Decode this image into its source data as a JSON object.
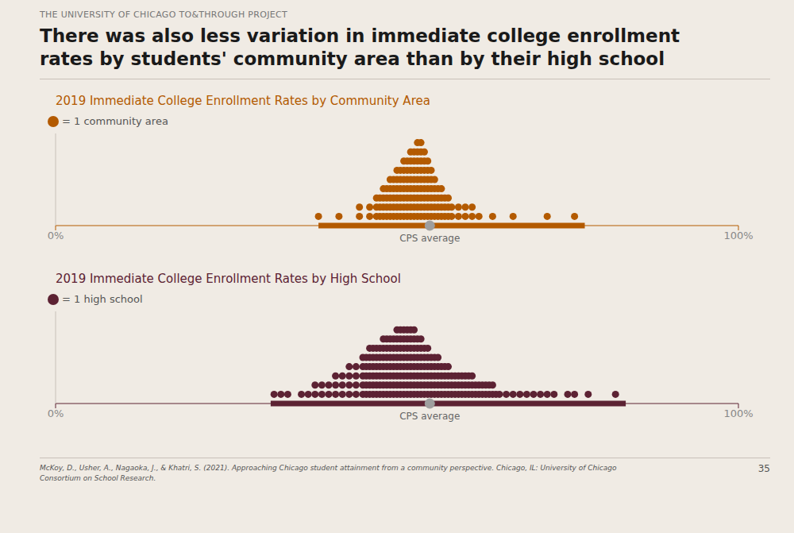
{
  "subtitle": "THE UNIVERSITY OF CHICAGO TO&THROUGH PROJECT",
  "title": "There was also less variation in immediate college enrollment\nrates by students' community area than by their high school",
  "annotations": [
    "McKoy, D., Usher, A., Nagaoka, J., & Khatri, S. (2021). Approaching Chicago student attainment from a community perspective. Chicago, IL: University of Chicago\nConsortium on School Research.",
    "35"
  ],
  "chart_data": [
    {
      "type": "scatter",
      "title": "2019 Immediate College Enrollment Rates by Community Area",
      "xlim": [
        0,
        1
      ],
      "xticks": [
        {
          "value": 0,
          "label": "0%"
        },
        {
          "value": 1,
          "label": "100%"
        }
      ],
      "ylim": [
        0,
        10
      ],
      "tick_labels": "x",
      "grid": false,
      "bar_range": [
        0.385,
        0.775
      ],
      "annotations": [
        {
          "text": "CPS average",
          "x": 0.548,
          "color": "#9e9e9e"
        }
      ],
      "series": [
        {
          "name": "= 1 community area",
          "color": "#b35a00",
          "x": [
            0.385,
            0.415,
            0.445,
            0.445,
            0.46,
            0.46,
            0.47,
            0.47,
            0.47,
            0.475,
            0.475,
            0.475,
            0.48,
            0.48,
            0.48,
            0.48,
            0.485,
            0.485,
            0.485,
            0.485,
            0.49,
            0.49,
            0.49,
            0.49,
            0.49,
            0.495,
            0.495,
            0.495,
            0.495,
            0.495,
            0.5,
            0.5,
            0.5,
            0.5,
            0.5,
            0.5,
            0.505,
            0.505,
            0.505,
            0.505,
            0.505,
            0.505,
            0.51,
            0.51,
            0.51,
            0.51,
            0.51,
            0.51,
            0.51,
            0.515,
            0.515,
            0.515,
            0.515,
            0.515,
            0.515,
            0.515,
            0.52,
            0.52,
            0.52,
            0.52,
            0.52,
            0.52,
            0.52,
            0.52,
            0.525,
            0.525,
            0.525,
            0.525,
            0.525,
            0.525,
            0.525,
            0.525,
            0.53,
            0.53,
            0.53,
            0.53,
            0.53,
            0.53,
            0.53,
            0.53,
            0.53,
            0.535,
            0.535,
            0.535,
            0.535,
            0.535,
            0.535,
            0.535,
            0.535,
            0.535,
            0.54,
            0.54,
            0.54,
            0.54,
            0.54,
            0.54,
            0.54,
            0.54,
            0.545,
            0.545,
            0.545,
            0.545,
            0.545,
            0.545,
            0.545,
            0.55,
            0.55,
            0.55,
            0.55,
            0.55,
            0.55,
            0.555,
            0.555,
            0.555,
            0.555,
            0.555,
            0.56,
            0.56,
            0.56,
            0.56,
            0.565,
            0.565,
            0.565,
            0.565,
            0.57,
            0.57,
            0.57,
            0.575,
            0.575,
            0.575,
            0.58,
            0.58,
            0.59,
            0.59,
            0.6,
            0.6,
            0.61,
            0.61,
            0.62,
            0.64,
            0.67,
            0.72,
            0.76
          ],
          "values": [
            1,
            1,
            1,
            2,
            1,
            2,
            1,
            2,
            3,
            1,
            2,
            3,
            1,
            2,
            3,
            4,
            1,
            2,
            3,
            4,
            1,
            2,
            3,
            4,
            5,
            1,
            2,
            3,
            4,
            5,
            1,
            2,
            3,
            4,
            5,
            6,
            1,
            2,
            3,
            4,
            5,
            6,
            1,
            2,
            3,
            4,
            5,
            6,
            7,
            1,
            2,
            3,
            4,
            5,
            6,
            7,
            1,
            2,
            3,
            4,
            5,
            6,
            7,
            8,
            1,
            2,
            3,
            4,
            5,
            6,
            7,
            8,
            1,
            2,
            3,
            4,
            5,
            6,
            7,
            8,
            9,
            1,
            2,
            3,
            4,
            5,
            6,
            7,
            8,
            9,
            1,
            2,
            3,
            4,
            5,
            6,
            7,
            8,
            1,
            2,
            3,
            4,
            5,
            6,
            7,
            1,
            2,
            3,
            4,
            5,
            6,
            1,
            2,
            3,
            4,
            5,
            1,
            2,
            3,
            4,
            1,
            2,
            3,
            4,
            1,
            2,
            3,
            1,
            2,
            3,
            1,
            2,
            1,
            2,
            1,
            2,
            1,
            2,
            1,
            1,
            1,
            1,
            1
          ]
        }
      ]
    },
    {
      "type": "scatter",
      "title": "2019 Immediate College Enrollment Rates by High School",
      "xlim": [
        0,
        1
      ],
      "xticks": [
        {
          "value": 0,
          "label": "0%"
        },
        {
          "value": 1,
          "label": "100%"
        }
      ],
      "ylim": [
        0,
        10
      ],
      "tick_labels": "x",
      "grid": false,
      "bar_range": [
        0.315,
        0.835
      ],
      "annotations": [
        {
          "text": "CPS average",
          "x": 0.548,
          "color": "#9e9e9e"
        }
      ],
      "series": [
        {
          "name": "= 1 high school",
          "color": "#5c2233",
          "x": [
            0.32,
            0.33,
            0.34,
            0.36,
            0.37,
            0.38,
            0.38,
            0.39,
            0.39,
            0.4,
            0.4,
            0.41,
            0.41,
            0.41,
            0.42,
            0.42,
            0.42,
            0.43,
            0.43,
            0.43,
            0.43,
            0.44,
            0.44,
            0.44,
            0.44,
            0.45,
            0.45,
            0.45,
            0.45,
            0.45,
            0.455,
            0.455,
            0.455,
            0.455,
            0.455,
            0.46,
            0.46,
            0.46,
            0.46,
            0.46,
            0.46,
            0.465,
            0.465,
            0.465,
            0.465,
            0.465,
            0.465,
            0.47,
            0.47,
            0.47,
            0.47,
            0.47,
            0.47,
            0.475,
            0.475,
            0.475,
            0.475,
            0.475,
            0.475,
            0.48,
            0.48,
            0.48,
            0.48,
            0.48,
            0.48,
            0.48,
            0.485,
            0.485,
            0.485,
            0.485,
            0.485,
            0.485,
            0.485,
            0.49,
            0.49,
            0.49,
            0.49,
            0.49,
            0.49,
            0.49,
            0.495,
            0.495,
            0.495,
            0.495,
            0.495,
            0.495,
            0.495,
            0.5,
            0.5,
            0.5,
            0.5,
            0.5,
            0.5,
            0.5,
            0.5,
            0.505,
            0.505,
            0.505,
            0.505,
            0.505,
            0.505,
            0.505,
            0.505,
            0.51,
            0.51,
            0.51,
            0.51,
            0.51,
            0.51,
            0.51,
            0.51,
            0.515,
            0.515,
            0.515,
            0.515,
            0.515,
            0.515,
            0.515,
            0.515,
            0.52,
            0.52,
            0.52,
            0.52,
            0.52,
            0.52,
            0.52,
            0.52,
            0.525,
            0.525,
            0.525,
            0.525,
            0.525,
            0.525,
            0.525,
            0.525,
            0.53,
            0.53,
            0.53,
            0.53,
            0.53,
            0.53,
            0.53,
            0.535,
            0.535,
            0.535,
            0.535,
            0.535,
            0.535,
            0.535,
            0.54,
            0.54,
            0.54,
            0.54,
            0.54,
            0.54,
            0.545,
            0.545,
            0.545,
            0.545,
            0.545,
            0.545,
            0.55,
            0.55,
            0.55,
            0.55,
            0.55,
            0.555,
            0.555,
            0.555,
            0.555,
            0.555,
            0.56,
            0.56,
            0.56,
            0.56,
            0.56,
            0.565,
            0.565,
            0.565,
            0.565,
            0.57,
            0.57,
            0.57,
            0.57,
            0.575,
            0.575,
            0.575,
            0.575,
            0.58,
            0.58,
            0.58,
            0.585,
            0.585,
            0.585,
            0.59,
            0.59,
            0.59,
            0.595,
            0.595,
            0.595,
            0.6,
            0.6,
            0.6,
            0.605,
            0.605,
            0.605,
            0.61,
            0.61,
            0.61,
            0.615,
            0.615,
            0.62,
            0.62,
            0.625,
            0.625,
            0.63,
            0.63,
            0.635,
            0.635,
            0.64,
            0.64,
            0.645,
            0.65,
            0.66,
            0.67,
            0.68,
            0.69,
            0.7,
            0.71,
            0.72,
            0.73,
            0.75,
            0.76,
            0.78,
            0.82
          ],
          "values": [
            1,
            1,
            1,
            1,
            1,
            1,
            2,
            1,
            2,
            1,
            2,
            1,
            2,
            3,
            1,
            2,
            3,
            1,
            2,
            3,
            4,
            1,
            2,
            3,
            4,
            1,
            2,
            3,
            4,
            5,
            1,
            2,
            3,
            4,
            5,
            1,
            2,
            3,
            4,
            5,
            6,
            1,
            2,
            3,
            4,
            5,
            6,
            1,
            2,
            3,
            4,
            5,
            6,
            1,
            2,
            3,
            4,
            5,
            6,
            1,
            2,
            3,
            4,
            5,
            6,
            7,
            1,
            2,
            3,
            4,
            5,
            6,
            7,
            1,
            2,
            3,
            4,
            5,
            6,
            7,
            1,
            2,
            3,
            4,
            5,
            6,
            7,
            1,
            2,
            3,
            4,
            5,
            6,
            7,
            8,
            1,
            2,
            3,
            4,
            5,
            6,
            7,
            8,
            1,
            2,
            3,
            4,
            5,
            6,
            7,
            8,
            1,
            2,
            3,
            4,
            5,
            6,
            7,
            8,
            1,
            2,
            3,
            4,
            5,
            6,
            7,
            8,
            1,
            2,
            3,
            4,
            5,
            6,
            7,
            8,
            1,
            2,
            3,
            4,
            5,
            6,
            7,
            1,
            2,
            3,
            4,
            5,
            6,
            7,
            1,
            2,
            3,
            4,
            5,
            6,
            1,
            2,
            3,
            4,
            5,
            6,
            1,
            2,
            3,
            4,
            5,
            1,
            2,
            3,
            4,
            5,
            1,
            2,
            3,
            4,
            5,
            1,
            2,
            3,
            4,
            1,
            2,
            3,
            4,
            1,
            2,
            3,
            4,
            1,
            2,
            3,
            1,
            2,
            3,
            1,
            2,
            3,
            1,
            2,
            3,
            1,
            2,
            3,
            1,
            2,
            3,
            1,
            2,
            3,
            1,
            2,
            1,
            2,
            1,
            2,
            1,
            2,
            1,
            2,
            1,
            2,
            1,
            1,
            1,
            1,
            1,
            1,
            1,
            1,
            1,
            1,
            1,
            1,
            1,
            1
          ]
        }
      ]
    }
  ]
}
